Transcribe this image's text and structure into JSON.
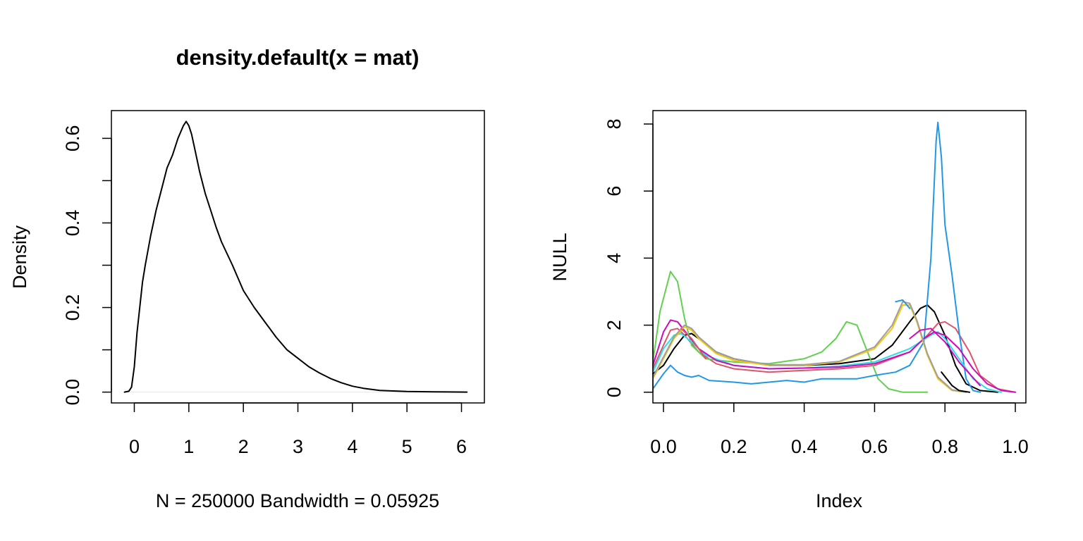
{
  "chart_data": [
    {
      "type": "line",
      "title": "density.default(x = mat)",
      "xlabel": "N = 250000   Bandwidth = 0.05925",
      "ylabel": "Density",
      "xlim": [
        -0.42,
        6.42
      ],
      "ylim": [
        -0.0256,
        0.6656
      ],
      "x_ticks": [
        0,
        1,
        2,
        3,
        4,
        5,
        6
      ],
      "x_tick_labels": [
        "0",
        "1",
        "2",
        "3",
        "4",
        "5",
        "6"
      ],
      "y_ticks": [
        0.0,
        0.1,
        0.2,
        0.3,
        0.4,
        0.5,
        0.6
      ],
      "y_tick_labels": [
        "0.0",
        "",
        "0.2",
        "",
        "0.4",
        "",
        "0.6"
      ],
      "baseline": {
        "y": 0,
        "color": "#E5E5E5"
      },
      "series": [
        {
          "color": "#000000",
          "points": [
            [
              -0.18,
              0.0
            ],
            [
              -0.1,
              0.002
            ],
            [
              -0.05,
              0.012
            ],
            [
              0.0,
              0.06
            ],
            [
              0.05,
              0.14
            ],
            [
              0.1,
              0.2
            ],
            [
              0.15,
              0.26
            ],
            [
              0.2,
              0.3
            ],
            [
              0.3,
              0.37
            ],
            [
              0.4,
              0.43
            ],
            [
              0.5,
              0.48
            ],
            [
              0.6,
              0.53
            ],
            [
              0.7,
              0.56
            ],
            [
              0.8,
              0.6
            ],
            [
              0.9,
              0.63
            ],
            [
              0.95,
              0.64
            ],
            [
              1.0,
              0.63
            ],
            [
              1.05,
              0.61
            ],
            [
              1.1,
              0.58
            ],
            [
              1.2,
              0.52
            ],
            [
              1.3,
              0.47
            ],
            [
              1.4,
              0.43
            ],
            [
              1.5,
              0.39
            ],
            [
              1.6,
              0.355
            ],
            [
              1.8,
              0.3
            ],
            [
              2.0,
              0.24
            ],
            [
              2.2,
              0.2
            ],
            [
              2.4,
              0.165
            ],
            [
              2.6,
              0.13
            ],
            [
              2.8,
              0.1
            ],
            [
              3.0,
              0.08
            ],
            [
              3.2,
              0.06
            ],
            [
              3.4,
              0.045
            ],
            [
              3.6,
              0.032
            ],
            [
              3.8,
              0.022
            ],
            [
              4.0,
              0.014
            ],
            [
              4.2,
              0.009
            ],
            [
              4.5,
              0.004
            ],
            [
              5.0,
              0.0015
            ],
            [
              5.5,
              0.0005
            ],
            [
              6.1,
              0.0
            ]
          ]
        }
      ]
    },
    {
      "type": "line",
      "title": "",
      "xlabel": "Index",
      "ylabel": "NULL",
      "xlim": [
        -0.03,
        1.03
      ],
      "ylim": [
        -0.32,
        8.4
      ],
      "x_ticks": [
        0.0,
        0.2,
        0.4,
        0.6,
        0.8,
        1.0
      ],
      "x_tick_labels": [
        "0.0",
        "0.2",
        "0.4",
        "0.6",
        "0.8",
        "1.0"
      ],
      "y_ticks": [
        0,
        2,
        4,
        6,
        8
      ],
      "y_tick_labels": [
        "0",
        "2",
        "4",
        "6",
        "8"
      ],
      "series": [
        {
          "color": "#000000",
          "points": [
            [
              -0.03,
              0.55
            ],
            [
              0.0,
              0.8
            ],
            [
              0.03,
              1.3
            ],
            [
              0.06,
              1.7
            ],
            [
              0.08,
              1.75
            ],
            [
              0.1,
              1.6
            ],
            [
              0.15,
              1.2
            ],
            [
              0.2,
              1.0
            ],
            [
              0.3,
              0.8
            ],
            [
              0.4,
              0.8
            ],
            [
              0.5,
              0.85
            ],
            [
              0.6,
              1.0
            ],
            [
              0.65,
              1.4
            ],
            [
              0.7,
              2.1
            ],
            [
              0.73,
              2.5
            ],
            [
              0.75,
              2.6
            ],
            [
              0.77,
              2.4
            ],
            [
              0.8,
              1.7
            ],
            [
              0.83,
              0.8
            ],
            [
              0.86,
              0.25
            ],
            [
              0.9,
              0.05
            ],
            [
              0.95,
              0.0
            ]
          ]
        },
        {
          "color": "#DF536B",
          "points": [
            [
              -0.03,
              0.7
            ],
            [
              0.0,
              1.4
            ],
            [
              0.02,
              1.85
            ],
            [
              0.04,
              1.9
            ],
            [
              0.06,
              1.7
            ],
            [
              0.1,
              1.2
            ],
            [
              0.15,
              0.85
            ],
            [
              0.2,
              0.7
            ],
            [
              0.3,
              0.6
            ],
            [
              0.4,
              0.65
            ],
            [
              0.5,
              0.7
            ],
            [
              0.6,
              0.8
            ],
            [
              0.7,
              1.2
            ],
            [
              0.75,
              1.7
            ],
            [
              0.78,
              2.05
            ],
            [
              0.8,
              2.1
            ],
            [
              0.83,
              1.9
            ],
            [
              0.87,
              1.2
            ],
            [
              0.9,
              0.5
            ],
            [
              0.95,
              0.1
            ],
            [
              1.0,
              0.0
            ]
          ]
        },
        {
          "color": "#61D04F",
          "points": [
            [
              -0.03,
              0.9
            ],
            [
              -0.01,
              2.4
            ],
            [
              0.02,
              3.6
            ],
            [
              0.04,
              3.3
            ],
            [
              0.06,
              2.2
            ],
            [
              0.08,
              1.4
            ],
            [
              0.12,
              1.0
            ],
            [
              0.2,
              0.9
            ],
            [
              0.3,
              0.85
            ],
            [
              0.4,
              1.0
            ],
            [
              0.45,
              1.2
            ],
            [
              0.49,
              1.6
            ],
            [
              0.52,
              2.1
            ],
            [
              0.55,
              2.0
            ],
            [
              0.58,
              1.2
            ],
            [
              0.61,
              0.4
            ],
            [
              0.64,
              0.1
            ],
            [
              0.68,
              0.0
            ],
            [
              0.75,
              0.0
            ]
          ]
        },
        {
          "color": "#2297E6",
          "points": [
            [
              -0.03,
              0.1
            ],
            [
              0.0,
              0.55
            ],
            [
              0.02,
              0.8
            ],
            [
              0.04,
              0.6
            ],
            [
              0.06,
              0.5
            ],
            [
              0.08,
              0.45
            ],
            [
              0.1,
              0.5
            ],
            [
              0.13,
              0.35
            ],
            [
              0.2,
              0.3
            ],
            [
              0.25,
              0.25
            ],
            [
              0.3,
              0.3
            ],
            [
              0.35,
              0.35
            ],
            [
              0.4,
              0.3
            ],
            [
              0.45,
              0.4
            ],
            [
              0.5,
              0.4
            ],
            [
              0.55,
              0.4
            ],
            [
              0.6,
              0.5
            ],
            [
              0.66,
              0.6
            ],
            [
              0.7,
              0.8
            ],
            [
              0.74,
              1.5
            ],
            [
              0.76,
              4.0
            ],
            [
              0.775,
              7.5
            ],
            [
              0.78,
              8.05
            ],
            [
              0.79,
              7.0
            ],
            [
              0.8,
              5.0
            ],
            [
              0.82,
              3.5
            ],
            [
              0.84,
              1.8
            ],
            [
              0.86,
              0.4
            ],
            [
              0.88,
              0.05
            ],
            [
              0.9,
              0.0
            ]
          ]
        },
        {
          "color": "#28E2E5",
          "points": [
            [
              -0.03,
              0.6
            ],
            [
              0.0,
              1.3
            ],
            [
              0.03,
              1.7
            ],
            [
              0.05,
              1.75
            ],
            [
              0.08,
              1.5
            ],
            [
              0.12,
              1.1
            ],
            [
              0.2,
              0.8
            ],
            [
              0.3,
              0.7
            ],
            [
              0.4,
              0.72
            ],
            [
              0.5,
              0.78
            ],
            [
              0.6,
              0.9
            ],
            [
              0.7,
              1.3
            ],
            [
              0.76,
              1.7
            ],
            [
              0.78,
              1.8
            ],
            [
              0.8,
              1.6
            ],
            [
              0.84,
              1.0
            ],
            [
              0.88,
              0.4
            ],
            [
              0.92,
              0.1
            ],
            [
              0.96,
              0.0
            ]
          ]
        },
        {
          "color": "#CD0BBC",
          "points": [
            [
              -0.03,
              0.8
            ],
            [
              0.0,
              1.8
            ],
            [
              0.02,
              2.15
            ],
            [
              0.04,
              2.1
            ],
            [
              0.07,
              1.7
            ],
            [
              0.1,
              1.3
            ],
            [
              0.15,
              0.95
            ],
            [
              0.2,
              0.8
            ],
            [
              0.3,
              0.7
            ],
            [
              0.4,
              0.72
            ],
            [
              0.5,
              0.75
            ],
            [
              0.6,
              0.85
            ],
            [
              0.7,
              1.2
            ],
            [
              0.74,
              1.6
            ],
            [
              0.77,
              1.8
            ],
            [
              0.8,
              1.7
            ],
            [
              0.84,
              1.3
            ],
            [
              0.88,
              0.7
            ],
            [
              0.92,
              0.25
            ],
            [
              0.96,
              0.05
            ],
            [
              1.0,
              0.0
            ]
          ]
        },
        {
          "color": "#F5C710",
          "points": [
            [
              -0.03,
              0.4
            ],
            [
              0.0,
              1.0
            ],
            [
              0.03,
              1.6
            ],
            [
              0.06,
              1.95
            ],
            [
              0.08,
              1.85
            ],
            [
              0.1,
              1.6
            ],
            [
              0.15,
              1.15
            ],
            [
              0.2,
              0.95
            ],
            [
              0.3,
              0.8
            ],
            [
              0.4,
              0.8
            ],
            [
              0.5,
              0.9
            ],
            [
              0.6,
              1.3
            ],
            [
              0.65,
              1.9
            ],
            [
              0.68,
              2.6
            ],
            [
              0.7,
              2.6
            ],
            [
              0.72,
              2.1
            ],
            [
              0.75,
              1.1
            ],
            [
              0.78,
              0.4
            ],
            [
              0.82,
              0.05
            ],
            [
              0.86,
              0.0
            ]
          ]
        },
        {
          "color": "#9E9E9E",
          "points": [
            [
              -0.03,
              0.45
            ],
            [
              0.0,
              1.05
            ],
            [
              0.03,
              1.65
            ],
            [
              0.06,
              2.0
            ],
            [
              0.08,
              1.9
            ],
            [
              0.1,
              1.65
            ],
            [
              0.15,
              1.2
            ],
            [
              0.2,
              1.0
            ],
            [
              0.3,
              0.82
            ],
            [
              0.4,
              0.82
            ],
            [
              0.5,
              0.92
            ],
            [
              0.6,
              1.35
            ],
            [
              0.65,
              2.0
            ],
            [
              0.68,
              2.7
            ],
            [
              0.7,
              2.65
            ],
            [
              0.72,
              2.15
            ],
            [
              0.75,
              1.15
            ],
            [
              0.78,
              0.45
            ],
            [
              0.82,
              0.07
            ],
            [
              0.86,
              0.0
            ]
          ]
        },
        {
          "color": "#000000",
          "points": [
            [
              0.79,
              0.6
            ],
            [
              0.82,
              0.2
            ],
            [
              0.84,
              0.05
            ],
            [
              0.87,
              0.0
            ]
          ]
        },
        {
          "color": "#DF536B",
          "points": [
            [
              0.05,
              1.9
            ],
            [
              0.08,
              1.6
            ],
            [
              0.12,
              1.0
            ]
          ]
        },
        {
          "color": "#2297E6",
          "points": [
            [
              0.66,
              2.7
            ],
            [
              0.68,
              2.75
            ],
            [
              0.7,
              2.5
            ]
          ]
        },
        {
          "color": "#CD0BBC",
          "points": [
            [
              0.7,
              1.6
            ],
            [
              0.73,
              1.85
            ],
            [
              0.76,
              1.9
            ],
            [
              0.8,
              1.5
            ],
            [
              0.84,
              0.9
            ],
            [
              0.9,
              0.2
            ]
          ]
        }
      ]
    }
  ]
}
